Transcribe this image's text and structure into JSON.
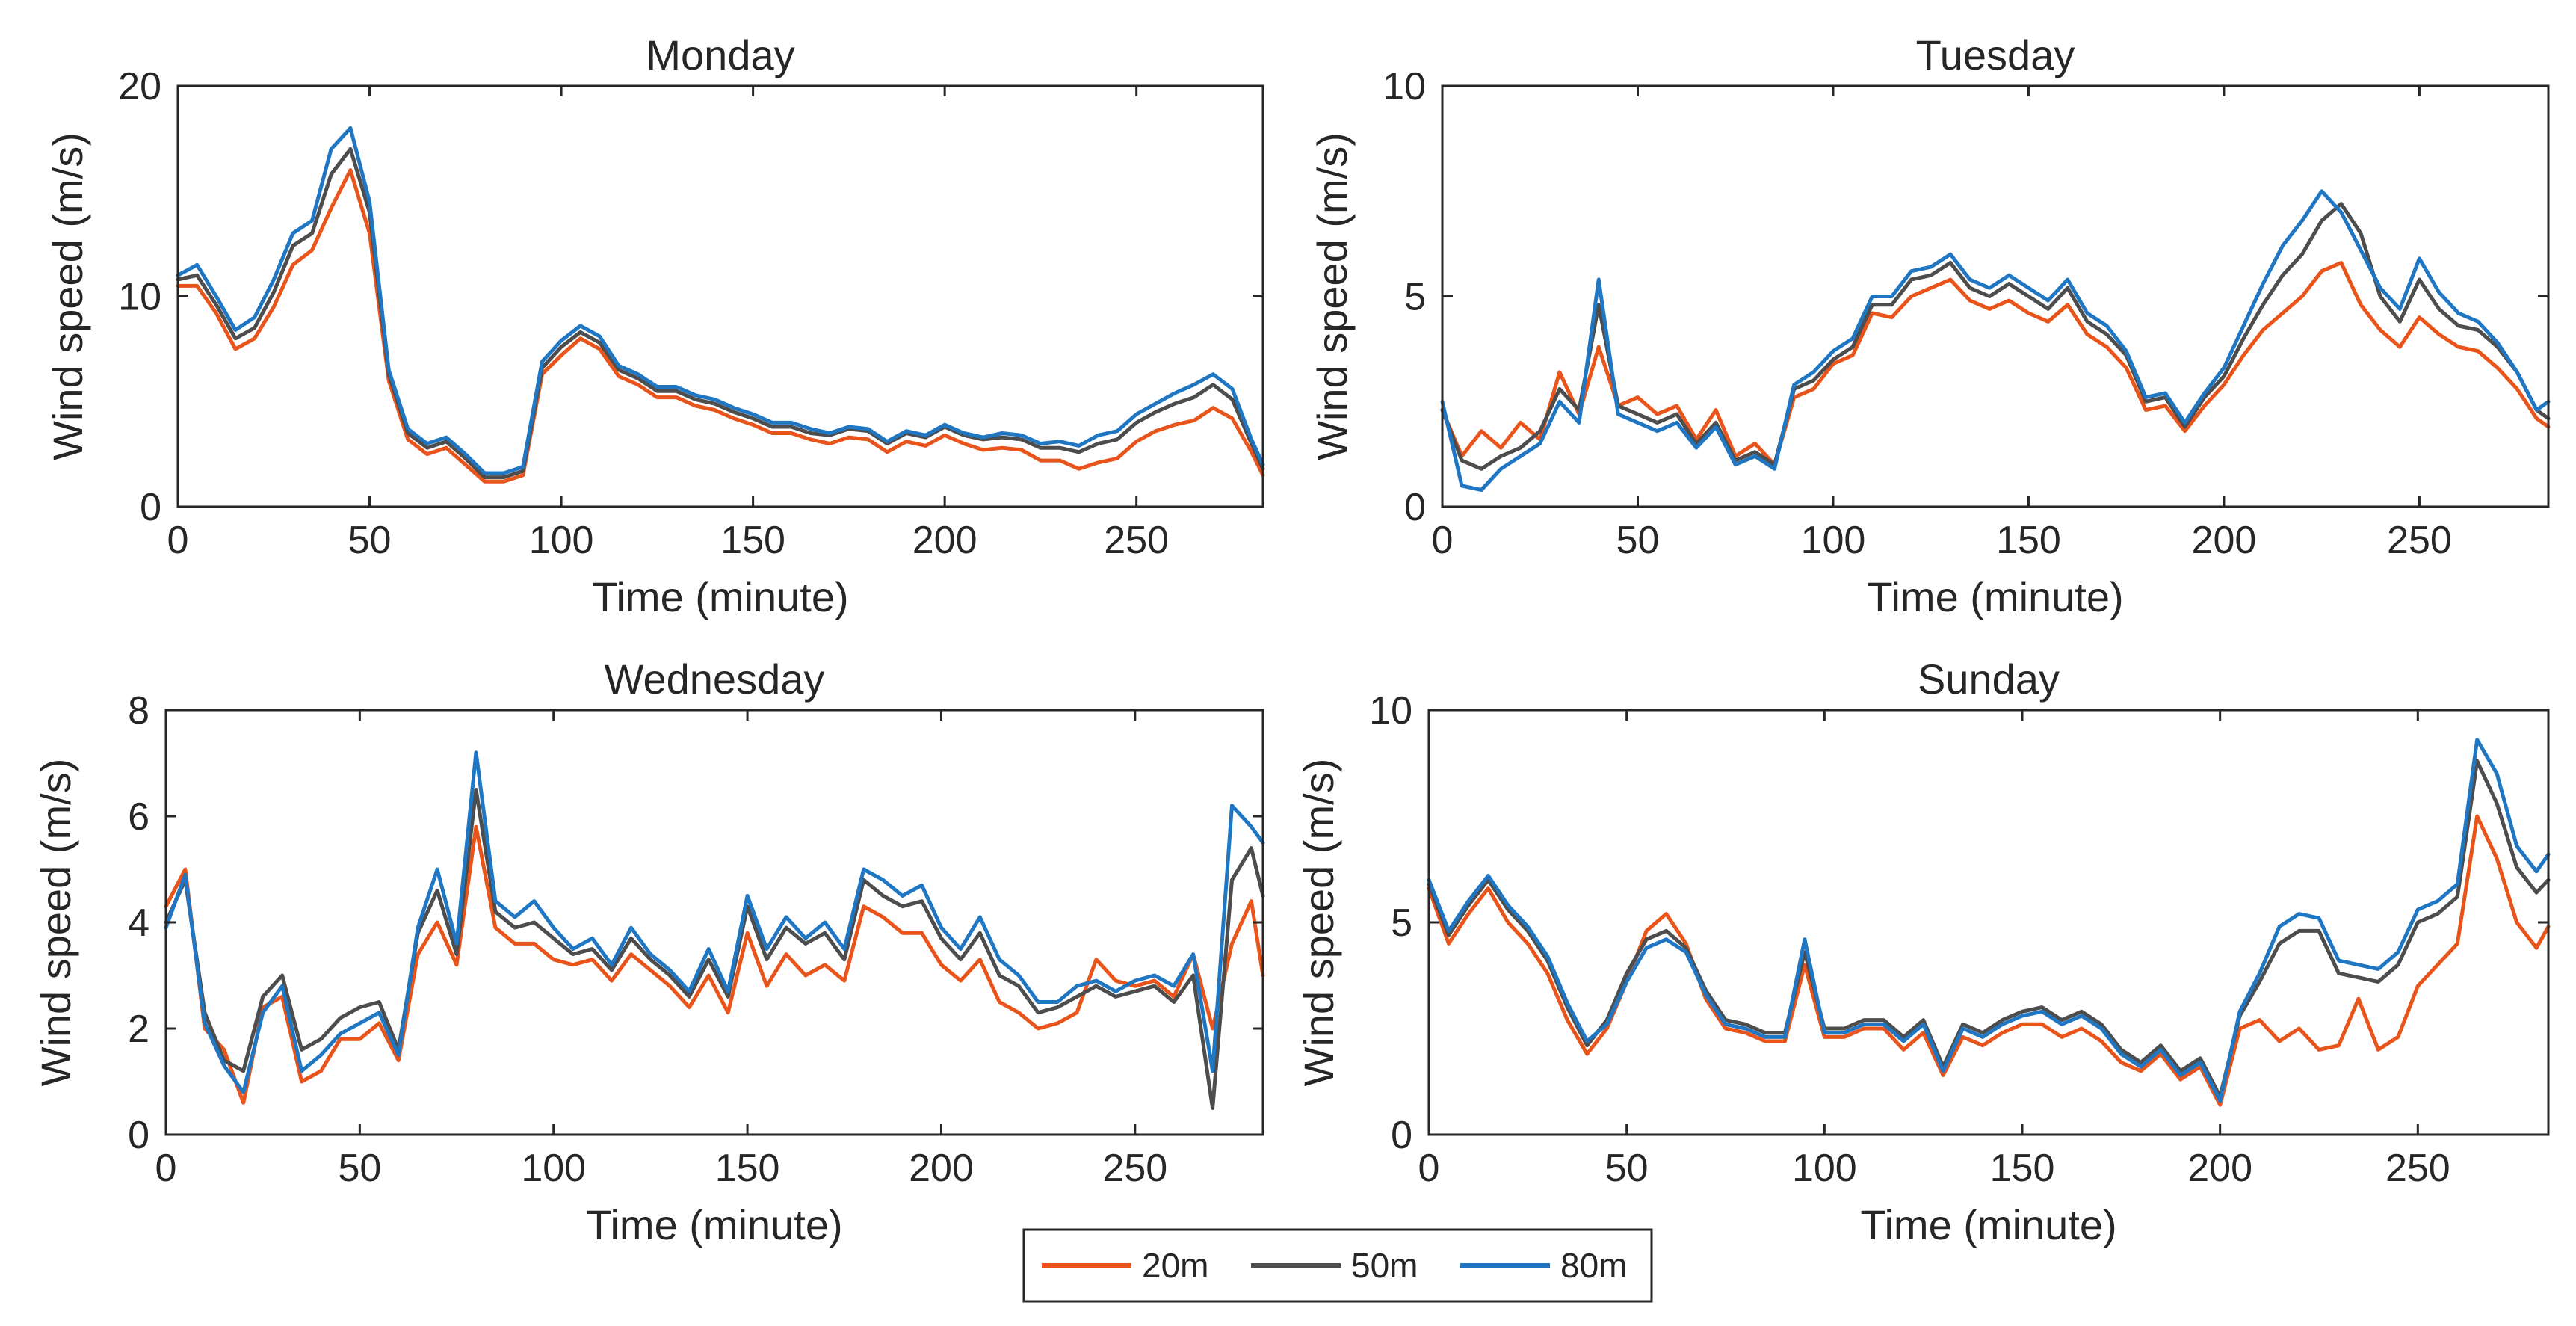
{
  "colors": {
    "20m": "#e8541a",
    "50m": "#4d4d4d",
    "80m": "#1f77c4"
  },
  "legend": [
    {
      "name": "20m",
      "color": "#e8541a"
    },
    {
      "name": "50m",
      "color": "#4d4d4d"
    },
    {
      "name": "80m",
      "color": "#1f77c4"
    }
  ],
  "chart_data": [
    {
      "type": "line",
      "title": "Monday",
      "xlabel": "Time (minute)",
      "ylabel": "Wind speed (m/s)",
      "xlim": [
        0,
        283
      ],
      "ylim": [
        0,
        20
      ],
      "xticks": [
        0,
        50,
        100,
        150,
        200,
        250
      ],
      "yticks": [
        0,
        10,
        20
      ],
      "x": [
        0,
        5,
        10,
        15,
        20,
        25,
        30,
        35,
        40,
        45,
        50,
        55,
        60,
        65,
        70,
        75,
        80,
        85,
        90,
        95,
        100,
        105,
        110,
        115,
        120,
        125,
        130,
        135,
        140,
        145,
        150,
        155,
        160,
        165,
        170,
        175,
        180,
        185,
        190,
        195,
        200,
        205,
        210,
        215,
        220,
        225,
        230,
        235,
        240,
        245,
        250,
        255,
        260,
        265,
        270,
        275,
        280,
        283
      ],
      "series": [
        {
          "name": "20m",
          "values": [
            10.5,
            10.5,
            9.2,
            7.5,
            8.0,
            9.5,
            11.5,
            12.2,
            14.2,
            16.0,
            13.0,
            6.0,
            3.2,
            2.5,
            2.8,
            2.0,
            1.2,
            1.2,
            1.5,
            6.3,
            7.2,
            8.0,
            7.5,
            6.2,
            5.8,
            5.2,
            5.2,
            4.8,
            4.6,
            4.2,
            3.9,
            3.5,
            3.5,
            3.2,
            3.0,
            3.3,
            3.2,
            2.6,
            3.1,
            2.9,
            3.4,
            3.0,
            2.7,
            2.8,
            2.7,
            2.2,
            2.2,
            1.8,
            2.1,
            2.3,
            3.1,
            3.6,
            3.9,
            4.1,
            4.7,
            4.2,
            2.6,
            1.5
          ]
        },
        {
          "name": "50m",
          "values": [
            10.8,
            11.0,
            9.6,
            8.0,
            8.5,
            10.2,
            12.4,
            13.0,
            15.8,
            17.0,
            14.0,
            6.3,
            3.5,
            2.8,
            3.1,
            2.3,
            1.4,
            1.4,
            1.7,
            6.6,
            7.6,
            8.3,
            7.8,
            6.5,
            6.1,
            5.5,
            5.5,
            5.1,
            4.9,
            4.5,
            4.2,
            3.8,
            3.8,
            3.5,
            3.4,
            3.7,
            3.6,
            3.0,
            3.5,
            3.3,
            3.8,
            3.4,
            3.2,
            3.3,
            3.2,
            2.8,
            2.8,
            2.6,
            3.0,
            3.2,
            4.0,
            4.5,
            4.9,
            5.2,
            5.8,
            5.1,
            3.0,
            1.8
          ]
        },
        {
          "name": "80m",
          "values": [
            11.0,
            11.5,
            10.0,
            8.4,
            9.0,
            10.8,
            13.0,
            13.6,
            17.0,
            18.0,
            14.5,
            6.5,
            3.7,
            3.0,
            3.3,
            2.5,
            1.6,
            1.6,
            1.9,
            6.9,
            7.9,
            8.6,
            8.1,
            6.7,
            6.3,
            5.7,
            5.7,
            5.3,
            5.1,
            4.7,
            4.4,
            4.0,
            4.0,
            3.7,
            3.5,
            3.8,
            3.7,
            3.1,
            3.6,
            3.4,
            3.9,
            3.5,
            3.3,
            3.5,
            3.4,
            3.0,
            3.1,
            2.9,
            3.4,
            3.6,
            4.4,
            4.9,
            5.4,
            5.8,
            6.3,
            5.6,
            3.2,
            2.0
          ]
        }
      ]
    },
    {
      "type": "line",
      "title": "Tuesday",
      "xlabel": "Time (minute)",
      "ylabel": "Wind speed (m/s)",
      "xlim": [
        0,
        283
      ],
      "ylim": [
        0,
        10
      ],
      "xticks": [
        0,
        50,
        100,
        150,
        200,
        250
      ],
      "yticks": [
        0,
        5,
        10
      ],
      "x": [
        0,
        5,
        10,
        15,
        20,
        25,
        30,
        35,
        40,
        45,
        50,
        55,
        60,
        65,
        70,
        75,
        80,
        85,
        90,
        95,
        100,
        105,
        110,
        115,
        120,
        125,
        130,
        135,
        140,
        145,
        150,
        155,
        160,
        165,
        170,
        175,
        180,
        185,
        190,
        195,
        200,
        205,
        210,
        215,
        220,
        225,
        230,
        235,
        240,
        245,
        250,
        255,
        260,
        265,
        270,
        275,
        280,
        283
      ],
      "series": [
        {
          "name": "20m",
          "values": [
            2.3,
            1.2,
            1.8,
            1.4,
            2.0,
            1.6,
            3.2,
            2.2,
            3.8,
            2.4,
            2.6,
            2.2,
            2.4,
            1.6,
            2.3,
            1.2,
            1.5,
            1.0,
            2.6,
            2.8,
            3.4,
            3.6,
            4.6,
            4.5,
            5.0,
            5.2,
            5.4,
            4.9,
            4.7,
            4.9,
            4.6,
            4.4,
            4.8,
            4.1,
            3.8,
            3.3,
            2.3,
            2.4,
            1.8,
            2.4,
            2.9,
            3.6,
            4.2,
            4.6,
            5.0,
            5.6,
            5.8,
            4.8,
            4.2,
            3.8,
            4.5,
            4.1,
            3.8,
            3.7,
            3.3,
            2.8,
            2.1,
            1.9
          ]
        },
        {
          "name": "50m",
          "values": [
            2.3,
            1.1,
            0.9,
            1.2,
            1.4,
            1.8,
            2.8,
            2.3,
            4.8,
            2.4,
            2.2,
            2.0,
            2.2,
            1.5,
            2.0,
            1.1,
            1.3,
            1.0,
            2.8,
            3.0,
            3.5,
            3.8,
            4.8,
            4.8,
            5.4,
            5.5,
            5.8,
            5.2,
            5.0,
            5.3,
            5.0,
            4.7,
            5.2,
            4.4,
            4.1,
            3.6,
            2.5,
            2.6,
            1.9,
            2.6,
            3.1,
            4.0,
            4.8,
            5.5,
            6.0,
            6.8,
            7.2,
            6.5,
            5.0,
            4.4,
            5.4,
            4.7,
            4.3,
            4.2,
            3.8,
            3.2,
            2.3,
            2.1
          ]
        },
        {
          "name": "80m",
          "values": [
            2.5,
            0.5,
            0.4,
            0.9,
            1.2,
            1.5,
            2.5,
            2.0,
            5.4,
            2.2,
            2.0,
            1.8,
            2.0,
            1.4,
            1.9,
            1.0,
            1.2,
            0.9,
            2.9,
            3.2,
            3.7,
            4.0,
            5.0,
            5.0,
            5.6,
            5.7,
            6.0,
            5.4,
            5.2,
            5.5,
            5.2,
            4.9,
            5.4,
            4.6,
            4.3,
            3.7,
            2.6,
            2.7,
            2.0,
            2.7,
            3.3,
            4.3,
            5.3,
            6.2,
            6.8,
            7.5,
            7.0,
            6.1,
            5.2,
            4.7,
            5.9,
            5.1,
            4.6,
            4.4,
            3.9,
            3.2,
            2.3,
            2.5
          ]
        }
      ]
    },
    {
      "type": "line",
      "title": "Wednesday",
      "xlabel": "Time (minute)",
      "ylabel": "Wind speed (m/s)",
      "xlim": [
        0,
        283
      ],
      "ylim": [
        0,
        8
      ],
      "xticks": [
        0,
        50,
        100,
        150,
        200,
        250
      ],
      "yticks": [
        0,
        2,
        4,
        6,
        8
      ],
      "x": [
        0,
        5,
        10,
        15,
        20,
        25,
        30,
        35,
        40,
        45,
        50,
        55,
        60,
        65,
        70,
        75,
        80,
        85,
        90,
        95,
        100,
        105,
        110,
        115,
        120,
        125,
        130,
        135,
        140,
        145,
        150,
        155,
        160,
        165,
        170,
        175,
        180,
        185,
        190,
        195,
        200,
        205,
        210,
        215,
        220,
        225,
        230,
        235,
        240,
        245,
        250,
        255,
        260,
        265,
        270,
        275,
        280,
        283
      ],
      "series": [
        {
          "name": "20m",
          "values": [
            4.3,
            5.0,
            2.0,
            1.6,
            0.6,
            2.4,
            2.6,
            1.0,
            1.2,
            1.8,
            1.8,
            2.1,
            1.4,
            3.4,
            4.0,
            3.2,
            5.8,
            3.9,
            3.6,
            3.6,
            3.3,
            3.2,
            3.3,
            2.9,
            3.4,
            3.1,
            2.8,
            2.4,
            3.0,
            2.3,
            3.8,
            2.8,
            3.4,
            3.0,
            3.2,
            2.9,
            4.3,
            4.1,
            3.8,
            3.8,
            3.2,
            2.9,
            3.3,
            2.5,
            2.3,
            2.0,
            2.1,
            2.3,
            3.3,
            2.9,
            2.8,
            2.9,
            2.6,
            3.4,
            2.0,
            3.6,
            4.4,
            3.0
          ]
        },
        {
          "name": "50m",
          "values": [
            4.0,
            4.8,
            2.3,
            1.4,
            1.2,
            2.6,
            3.0,
            1.6,
            1.8,
            2.2,
            2.4,
            2.5,
            1.6,
            3.8,
            4.6,
            3.4,
            6.5,
            4.2,
            3.9,
            4.0,
            3.7,
            3.4,
            3.5,
            3.1,
            3.7,
            3.3,
            3.0,
            2.6,
            3.3,
            2.6,
            4.3,
            3.3,
            3.9,
            3.6,
            3.8,
            3.3,
            4.8,
            4.5,
            4.3,
            4.4,
            3.7,
            3.3,
            3.8,
            3.0,
            2.8,
            2.3,
            2.4,
            2.6,
            2.8,
            2.6,
            2.7,
            2.8,
            2.5,
            3.0,
            0.5,
            4.8,
            5.4,
            4.5
          ]
        },
        {
          "name": "80m",
          "values": [
            3.9,
            4.9,
            2.1,
            1.3,
            0.8,
            2.3,
            2.8,
            1.2,
            1.5,
            1.9,
            2.1,
            2.3,
            1.5,
            3.9,
            5.0,
            3.6,
            7.2,
            4.4,
            4.1,
            4.4,
            3.9,
            3.5,
            3.7,
            3.2,
            3.9,
            3.4,
            3.1,
            2.7,
            3.5,
            2.7,
            4.5,
            3.5,
            4.1,
            3.7,
            4.0,
            3.5,
            5.0,
            4.8,
            4.5,
            4.7,
            3.9,
            3.5,
            4.1,
            3.3,
            3.0,
            2.5,
            2.5,
            2.8,
            2.9,
            2.7,
            2.9,
            3.0,
            2.8,
            3.4,
            1.2,
            6.2,
            5.8,
            5.5
          ]
        }
      ]
    },
    {
      "type": "line",
      "title": "Sunday",
      "xlabel": "Time (minute)",
      "ylabel": "Wind speed (m/s)",
      "xlim": [
        0,
        283
      ],
      "ylim": [
        0,
        10
      ],
      "xticks": [
        0,
        50,
        100,
        150,
        200,
        250
      ],
      "yticks": [
        0,
        5,
        10
      ],
      "x": [
        0,
        5,
        10,
        15,
        20,
        25,
        30,
        35,
        40,
        45,
        50,
        55,
        60,
        65,
        70,
        75,
        80,
        85,
        90,
        95,
        100,
        105,
        110,
        115,
        120,
        125,
        130,
        135,
        140,
        145,
        150,
        155,
        160,
        165,
        170,
        175,
        180,
        185,
        190,
        195,
        200,
        205,
        210,
        215,
        220,
        225,
        230,
        235,
        240,
        245,
        250,
        255,
        260,
        265,
        270,
        275,
        280,
        283
      ],
      "series": [
        {
          "name": "20m",
          "values": [
            5.8,
            4.5,
            5.2,
            5.8,
            5.0,
            4.5,
            3.8,
            2.7,
            1.9,
            2.5,
            3.6,
            4.8,
            5.2,
            4.5,
            3.2,
            2.5,
            2.4,
            2.2,
            2.2,
            4.0,
            2.3,
            2.3,
            2.5,
            2.5,
            2.0,
            2.4,
            1.4,
            2.3,
            2.1,
            2.4,
            2.6,
            2.6,
            2.3,
            2.5,
            2.2,
            1.7,
            1.5,
            1.9,
            1.3,
            1.6,
            0.7,
            2.5,
            2.7,
            2.2,
            2.5,
            2.0,
            2.1,
            3.2,
            2.0,
            2.3,
            3.5,
            4.0,
            4.5,
            7.5,
            6.5,
            5.0,
            4.4,
            4.9
          ]
        },
        {
          "name": "50m",
          "values": [
            5.9,
            4.7,
            5.4,
            6.0,
            5.3,
            4.8,
            4.1,
            3.0,
            2.1,
            2.7,
            3.8,
            4.6,
            4.8,
            4.4,
            3.4,
            2.7,
            2.6,
            2.4,
            2.4,
            4.3,
            2.5,
            2.5,
            2.7,
            2.7,
            2.3,
            2.7,
            1.6,
            2.6,
            2.4,
            2.7,
            2.9,
            3.0,
            2.7,
            2.9,
            2.6,
            2.0,
            1.7,
            2.1,
            1.5,
            1.8,
            0.9,
            2.8,
            3.6,
            4.5,
            4.8,
            4.8,
            3.8,
            3.7,
            3.6,
            4.0,
            5.0,
            5.2,
            5.6,
            8.8,
            7.8,
            6.3,
            5.7,
            6.0
          ]
        },
        {
          "name": "80m",
          "values": [
            6.0,
            4.8,
            5.5,
            6.1,
            5.4,
            4.9,
            4.2,
            3.1,
            2.2,
            2.6,
            3.6,
            4.4,
            4.6,
            4.3,
            3.3,
            2.6,
            2.5,
            2.3,
            2.3,
            4.6,
            2.4,
            2.4,
            2.6,
            2.6,
            2.2,
            2.6,
            1.5,
            2.5,
            2.3,
            2.6,
            2.8,
            2.9,
            2.6,
            2.8,
            2.5,
            1.9,
            1.6,
            2.0,
            1.4,
            1.7,
            0.8,
            2.9,
            3.8,
            4.9,
            5.2,
            5.1,
            4.1,
            4.0,
            3.9,
            4.3,
            5.3,
            5.5,
            5.9,
            9.3,
            8.5,
            6.8,
            6.2,
            6.6
          ]
        }
      ]
    }
  ]
}
